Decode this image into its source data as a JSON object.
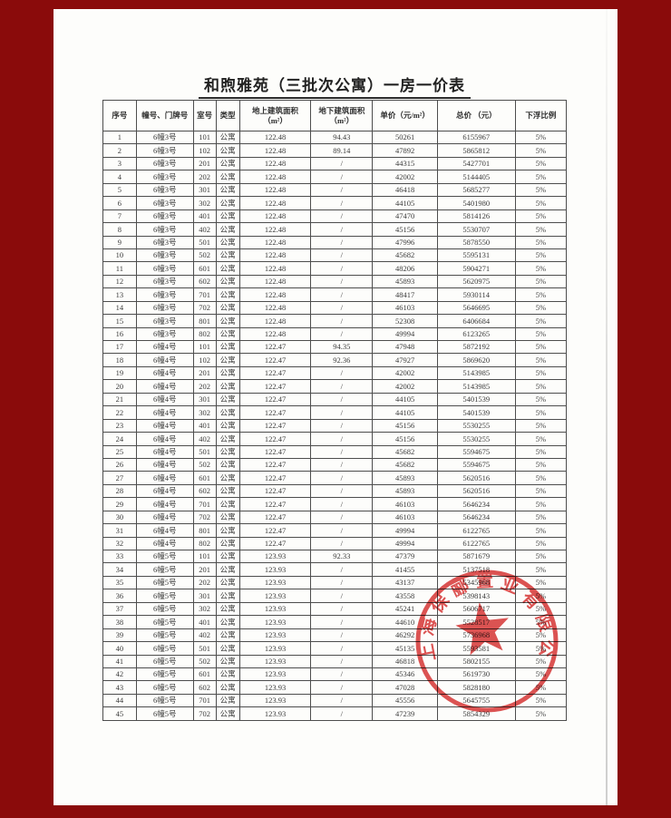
{
  "page": {
    "title": "和煦雅苑（三批次公寓）一房一价表",
    "background_color": "#8a0b0b",
    "paper_color": "#fdfdfb"
  },
  "table": {
    "headers": [
      "序号",
      "幢号、门牌号",
      "室号",
      "类型",
      "地上建筑面积\n（m²）",
      "地下建筑面积\n（m²）",
      "单价（元/m²）",
      "总价 （元）",
      "下浮比例"
    ],
    "rows": [
      [
        "1",
        "6幢3号",
        "101",
        "公寓",
        "122.48",
        "94.43",
        "50261",
        "6155967",
        "5%"
      ],
      [
        "2",
        "6幢3号",
        "102",
        "公寓",
        "122.48",
        "89.14",
        "47892",
        "5865812",
        "5%"
      ],
      [
        "3",
        "6幢3号",
        "201",
        "公寓",
        "122.48",
        "/",
        "44315",
        "5427701",
        "5%"
      ],
      [
        "4",
        "6幢3号",
        "202",
        "公寓",
        "122.48",
        "/",
        "42002",
        "5144405",
        "5%"
      ],
      [
        "5",
        "6幢3号",
        "301",
        "公寓",
        "122.48",
        "/",
        "46418",
        "5685277",
        "5%"
      ],
      [
        "6",
        "6幢3号",
        "302",
        "公寓",
        "122.48",
        "/",
        "44105",
        "5401980",
        "5%"
      ],
      [
        "7",
        "6幢3号",
        "401",
        "公寓",
        "122.48",
        "/",
        "47470",
        "5814126",
        "5%"
      ],
      [
        "8",
        "6幢3号",
        "402",
        "公寓",
        "122.48",
        "/",
        "45156",
        "5530707",
        "5%"
      ],
      [
        "9",
        "6幢3号",
        "501",
        "公寓",
        "122.48",
        "/",
        "47996",
        "5878550",
        "5%"
      ],
      [
        "10",
        "6幢3号",
        "502",
        "公寓",
        "122.48",
        "/",
        "45682",
        "5595131",
        "5%"
      ],
      [
        "11",
        "6幢3号",
        "601",
        "公寓",
        "122.48",
        "/",
        "48206",
        "5904271",
        "5%"
      ],
      [
        "12",
        "6幢3号",
        "602",
        "公寓",
        "122.48",
        "/",
        "45893",
        "5620975",
        "5%"
      ],
      [
        "13",
        "6幢3号",
        "701",
        "公寓",
        "122.48",
        "/",
        "48417",
        "5930114",
        "5%"
      ],
      [
        "14",
        "6幢3号",
        "702",
        "公寓",
        "122.48",
        "/",
        "46103",
        "5646695",
        "5%"
      ],
      [
        "15",
        "6幢3号",
        "801",
        "公寓",
        "122.48",
        "/",
        "52308",
        "6406684",
        "5%"
      ],
      [
        "16",
        "6幢3号",
        "802",
        "公寓",
        "122.48",
        "/",
        "49994",
        "6123265",
        "5%"
      ],
      [
        "17",
        "6幢4号",
        "101",
        "公寓",
        "122.47",
        "94.35",
        "47948",
        "5872192",
        "5%"
      ],
      [
        "18",
        "6幢4号",
        "102",
        "公寓",
        "122.47",
        "92.36",
        "47927",
        "5869620",
        "5%"
      ],
      [
        "19",
        "6幢4号",
        "201",
        "公寓",
        "122.47",
        "/",
        "42002",
        "5143985",
        "5%"
      ],
      [
        "20",
        "6幢4号",
        "202",
        "公寓",
        "122.47",
        "/",
        "42002",
        "5143985",
        "5%"
      ],
      [
        "21",
        "6幢4号",
        "301",
        "公寓",
        "122.47",
        "/",
        "44105",
        "5401539",
        "5%"
      ],
      [
        "22",
        "6幢4号",
        "302",
        "公寓",
        "122.47",
        "/",
        "44105",
        "5401539",
        "5%"
      ],
      [
        "23",
        "6幢4号",
        "401",
        "公寓",
        "122.47",
        "/",
        "45156",
        "5530255",
        "5%"
      ],
      [
        "24",
        "6幢4号",
        "402",
        "公寓",
        "122.47",
        "/",
        "45156",
        "5530255",
        "5%"
      ],
      [
        "25",
        "6幢4号",
        "501",
        "公寓",
        "122.47",
        "/",
        "45682",
        "5594675",
        "5%"
      ],
      [
        "26",
        "6幢4号",
        "502",
        "公寓",
        "122.47",
        "/",
        "45682",
        "5594675",
        "5%"
      ],
      [
        "27",
        "6幢4号",
        "601",
        "公寓",
        "122.47",
        "/",
        "45893",
        "5620516",
        "5%"
      ],
      [
        "28",
        "6幢4号",
        "602",
        "公寓",
        "122.47",
        "/",
        "45893",
        "5620516",
        "5%"
      ],
      [
        "29",
        "6幢4号",
        "701",
        "公寓",
        "122.47",
        "/",
        "46103",
        "5646234",
        "5%"
      ],
      [
        "30",
        "6幢4号",
        "702",
        "公寓",
        "122.47",
        "/",
        "46103",
        "5646234",
        "5%"
      ],
      [
        "31",
        "6幢4号",
        "801",
        "公寓",
        "122.47",
        "/",
        "49994",
        "6122765",
        "5%"
      ],
      [
        "32",
        "6幢4号",
        "802",
        "公寓",
        "122.47",
        "/",
        "49994",
        "6122765",
        "5%"
      ],
      [
        "33",
        "6幢5号",
        "101",
        "公寓",
        "123.93",
        "92.33",
        "47379",
        "5871679",
        "5%"
      ],
      [
        "34",
        "6幢5号",
        "201",
        "公寓",
        "123.93",
        "/",
        "41455",
        "5137518",
        "5%"
      ],
      [
        "35",
        "6幢5号",
        "202",
        "公寓",
        "123.93",
        "/",
        "43137",
        "5345968",
        "5%"
      ],
      [
        "36",
        "6幢5号",
        "301",
        "公寓",
        "123.93",
        "/",
        "43558",
        "5398143",
        "5%"
      ],
      [
        "37",
        "6幢5号",
        "302",
        "公寓",
        "123.93",
        "/",
        "45241",
        "5606717",
        "5%"
      ],
      [
        "38",
        "6幢5号",
        "401",
        "公寓",
        "123.93",
        "/",
        "44610",
        "5528517",
        "5%"
      ],
      [
        "39",
        "6幢5号",
        "402",
        "公寓",
        "123.93",
        "/",
        "46292",
        "5736968",
        "5%"
      ],
      [
        "40",
        "6幢5号",
        "501",
        "公寓",
        "123.93",
        "/",
        "45135",
        "5593581",
        "5%"
      ],
      [
        "41",
        "6幢5号",
        "502",
        "公寓",
        "123.93",
        "/",
        "46818",
        "5802155",
        "5%"
      ],
      [
        "42",
        "6幢5号",
        "601",
        "公寓",
        "123.93",
        "/",
        "45346",
        "5619730",
        "5%"
      ],
      [
        "43",
        "6幢5号",
        "602",
        "公寓",
        "123.93",
        "/",
        "47028",
        "5828180",
        "5%"
      ],
      [
        "44",
        "6幢5号",
        "701",
        "公寓",
        "123.93",
        "/",
        "45556",
        "5645755",
        "5%"
      ],
      [
        "45",
        "6幢5号",
        "702",
        "公寓",
        "123.93",
        "/",
        "47239",
        "5854329",
        "5%"
      ]
    ],
    "cell_names": [
      "index",
      "building-door",
      "room",
      "type",
      "area-above",
      "area-below",
      "unit-price",
      "total-price",
      "discount-ratio"
    ]
  },
  "stamp": {
    "text": "上海保郦置业有限公司",
    "color": "#d93b3b"
  }
}
